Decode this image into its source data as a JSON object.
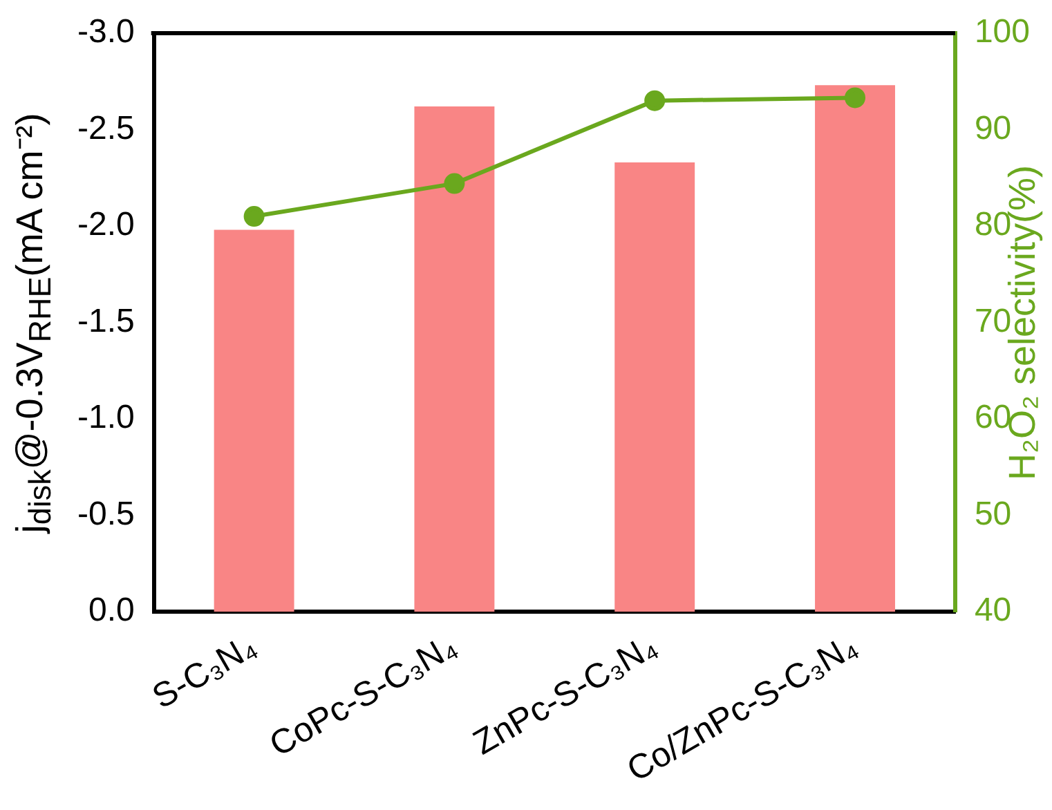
{
  "chart_data": {
    "type": "bar",
    "categories": [
      "S-C₃N₄",
      "CoPc-S-C₃N₄",
      "ZnPc-S-C₃N₄",
      "Co/ZnPc-S-C₃N₄"
    ],
    "ylabel": "j$_{disk}$@-0.3V$_{RHE}$(mA cm⁻²)",
    "y2label": "H₂O₂ selectivity(%)",
    "series": [
      {
        "color": "#f98585",
        "values": [
          -1.98,
          -2.62,
          -2.33,
          -2.73
        ]
      },
      {
        "type": "line",
        "axis": "y2",
        "color": "#6aa81e",
        "values": [
          81,
          84.4,
          93,
          93.3
        ]
      }
    ],
    "ylim": [
      0,
      -3
    ],
    "yticks": [
      {
        "value": 0,
        "label": "0.0"
      },
      {
        "value": -0.5,
        "label": "-0.5"
      },
      {
        "value": -1,
        "label": "-1.0"
      },
      {
        "value": -1.5,
        "label": "-1.5"
      },
      {
        "value": -2,
        "label": "-2.0"
      },
      {
        "value": -2.5,
        "label": "-2.5"
      },
      {
        "value": -3,
        "label": "-3.0"
      }
    ],
    "y2lim": [
      40,
      100
    ],
    "y2ticks": [
      40,
      50,
      60,
      70,
      80,
      90,
      100
    ],
    "marker": "circle",
    "grid": false,
    "legend": false
  }
}
